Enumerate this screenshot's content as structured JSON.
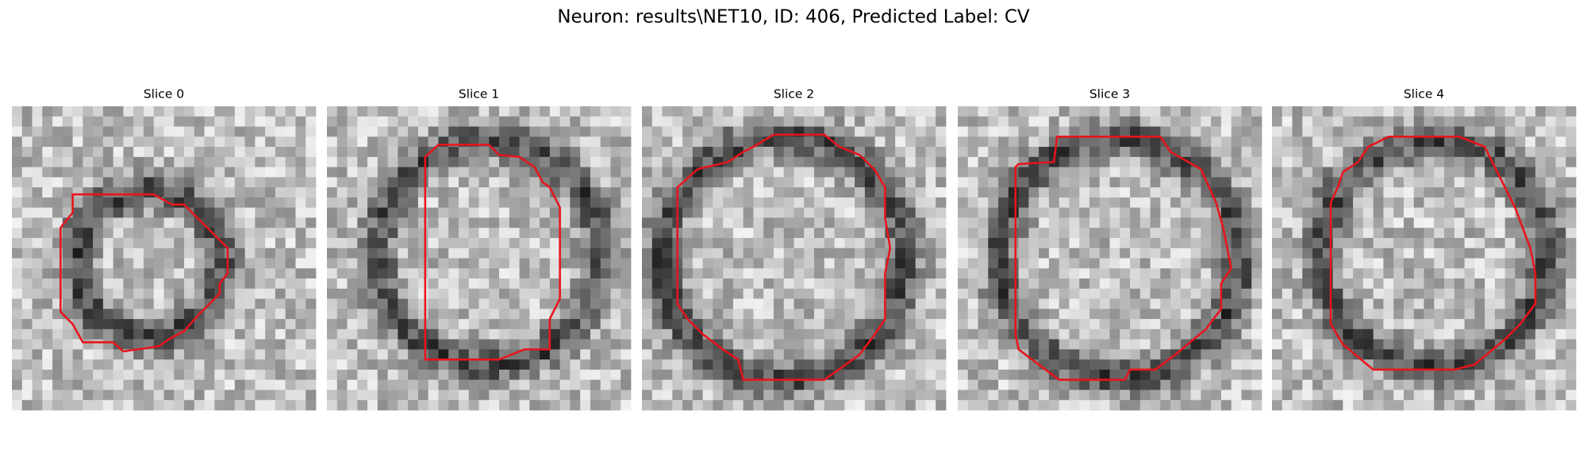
{
  "title": "Neuron: results\\NET10, ID: 406, Predicted Label: CV",
  "panels": [
    {
      "title": "Slice 0"
    },
    {
      "title": "Slice 1"
    },
    {
      "title": "Slice 2"
    },
    {
      "title": "Slice 3"
    },
    {
      "title": "Slice 4"
    }
  ]
}
